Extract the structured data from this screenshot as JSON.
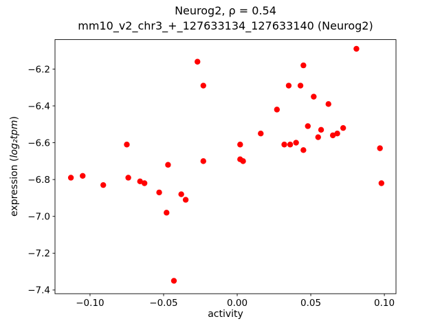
{
  "chart_data": {
    "type": "scatter",
    "title_line1": "Neurog2, ρ = 0.54",
    "title_line2": "mm10_v2_chr3_+_127633134_127633140 (Neurog2)",
    "xlabel": "activity",
    "ylabel_prefix": "expression (",
    "ylabel_math": "log₂tpm",
    "ylabel_suffix": ")",
    "marker_color": "#ff0000",
    "axis_color": "#000000",
    "xlim": [
      -0.1238,
      0.1079
    ],
    "ylim": [
      -7.42,
      -6.04
    ],
    "xticks": [
      -0.1,
      -0.05,
      0.0,
      0.05,
      0.1
    ],
    "xtick_labels": [
      "−0.10",
      "−0.05",
      "0.00",
      "0.05",
      "0.10"
    ],
    "yticks": [
      -6.2,
      -6.4,
      -6.6,
      -6.8,
      -7.0,
      -7.2,
      -7.4
    ],
    "ytick_labels": [
      "−6.2",
      "−6.4",
      "−6.6",
      "−6.8",
      "−7.0",
      "−7.2",
      "−7.4"
    ],
    "grid": false,
    "legend": "none",
    "points": [
      [
        -0.113,
        -6.79
      ],
      [
        -0.105,
        -6.78
      ],
      [
        -0.091,
        -6.83
      ],
      [
        -0.075,
        -6.61
      ],
      [
        -0.074,
        -6.79
      ],
      [
        -0.066,
        -6.81
      ],
      [
        -0.063,
        -6.82
      ],
      [
        -0.053,
        -6.87
      ],
      [
        -0.048,
        -6.98
      ],
      [
        -0.047,
        -6.72
      ],
      [
        -0.043,
        -7.35
      ],
      [
        -0.038,
        -6.88
      ],
      [
        -0.035,
        -6.91
      ],
      [
        -0.027,
        -6.16
      ],
      [
        -0.023,
        -6.29
      ],
      [
        -0.023,
        -6.7
      ],
      [
        0.002,
        -6.61
      ],
      [
        0.002,
        -6.69
      ],
      [
        0.004,
        -6.7
      ],
      [
        0.016,
        -6.55
      ],
      [
        0.027,
        -6.42
      ],
      [
        0.032,
        -6.61
      ],
      [
        0.035,
        -6.29
      ],
      [
        0.036,
        -6.61
      ],
      [
        0.04,
        -6.6
      ],
      [
        0.043,
        -6.29
      ],
      [
        0.045,
        -6.18
      ],
      [
        0.045,
        -6.64
      ],
      [
        0.048,
        -6.51
      ],
      [
        0.052,
        -6.35
      ],
      [
        0.055,
        -6.57
      ],
      [
        0.057,
        -6.53
      ],
      [
        0.062,
        -6.39
      ],
      [
        0.065,
        -6.56
      ],
      [
        0.068,
        -6.55
      ],
      [
        0.072,
        -6.52
      ],
      [
        0.081,
        -6.09
      ],
      [
        0.097,
        -6.63
      ],
      [
        0.098,
        -6.82
      ]
    ]
  }
}
